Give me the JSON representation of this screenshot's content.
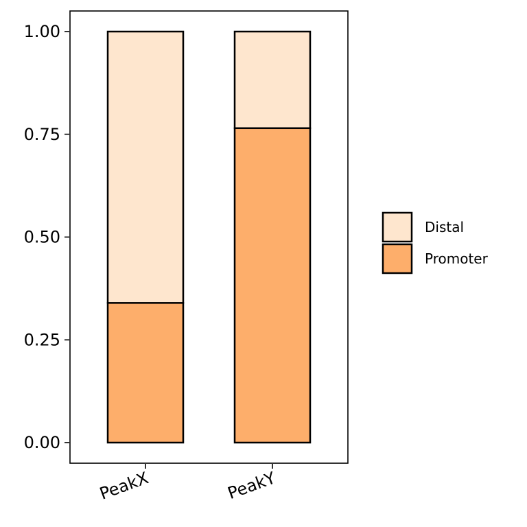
{
  "chart_data": {
    "type": "bar",
    "stacked": true,
    "categories": [
      "PeakX",
      "PeakY"
    ],
    "series": [
      {
        "name": "Promoter",
        "values": [
          0.34,
          0.765
        ],
        "color": "#FDAE6B"
      },
      {
        "name": "Distal",
        "values": [
          0.66,
          0.235
        ],
        "color": "#FEE6CE"
      }
    ],
    "ylim": [
      0,
      1
    ],
    "yticks": [
      "0.00",
      "0.25",
      "0.50",
      "0.75",
      "1.00"
    ],
    "legend": {
      "position": "right",
      "order": [
        "Distal",
        "Promoter"
      ]
    },
    "grid": false
  }
}
